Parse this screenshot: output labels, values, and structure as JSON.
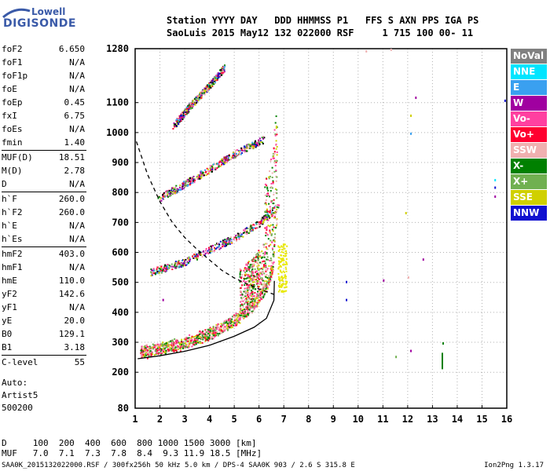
{
  "logo": {
    "line1": "Lowell",
    "line2": "DIGISONDE"
  },
  "header": {
    "row1": "Station YYYY DAY   DDD HHMMSS P1   FFS S AXN PPS IGA PS",
    "row2": "SaoLuis 2015 May12 132 022000 RSF     1 715 100 00- 11"
  },
  "params": {
    "group1": [
      {
        "label": "foF2",
        "value": "6.650"
      },
      {
        "label": "foF1",
        "value": "N/A"
      },
      {
        "label": "foF1p",
        "value": "N/A"
      },
      {
        "label": "foE",
        "value": "N/A"
      },
      {
        "label": "foEp",
        "value": "0.45"
      },
      {
        "label": "fxI",
        "value": "6.75"
      },
      {
        "label": "foEs",
        "value": "N/A"
      },
      {
        "label": "fmin",
        "value": "1.40"
      }
    ],
    "group2": [
      {
        "label": "MUF(D)",
        "value": "18.51"
      },
      {
        "label": "M(D)",
        "value": "2.78"
      },
      {
        "label": "D",
        "value": "N/A"
      }
    ],
    "group3": [
      {
        "label": "h`F",
        "value": "260.0"
      },
      {
        "label": "h`F2",
        "value": "260.0"
      },
      {
        "label": "h`E",
        "value": "N/A"
      },
      {
        "label": "h`Es",
        "value": "N/A"
      }
    ],
    "group4": [
      {
        "label": "hmF2",
        "value": "403.0"
      },
      {
        "label": "hmF1",
        "value": "N/A"
      },
      {
        "label": "hmE",
        "value": "110.0"
      },
      {
        "label": "yF2",
        "value": "142.6"
      },
      {
        "label": "yF1",
        "value": "N/A"
      },
      {
        "label": "yE",
        "value": "20.0"
      },
      {
        "label": "B0",
        "value": "129.1"
      },
      {
        "label": "B1",
        "value": "3.18"
      }
    ],
    "group5": [
      {
        "label": "C-level",
        "value": "55"
      }
    ]
  },
  "auto": {
    "l1": "Auto:",
    "l2": "Artist5",
    "l3": "500200"
  },
  "muf_table": {
    "row1": "D     100  200  400  600  800 1000 1500 3000 [km]",
    "row2": "MUF   7.0  7.1  7.3  7.8  8.4  9.3 11.9 18.5 [MHz]"
  },
  "footer": "SAA0K_2015132022000.RSF / 300fx256h 50 kHz 5.0 km / DPS-4 SAA0K 903 / 2.6 S 315.8 E",
  "version": "Ion2Png 1.3.17",
  "legend": [
    {
      "label": "NoVal",
      "color": "#808080"
    },
    {
      "label": "NNE",
      "color": "#00e5ff"
    },
    {
      "label": "E",
      "color": "#3aa0f0"
    },
    {
      "label": "W",
      "color": "#a000a0"
    },
    {
      "label": "Vo-",
      "color": "#ff40a0"
    },
    {
      "label": "Vo+",
      "color": "#ff0030"
    },
    {
      "label": "SSW",
      "color": "#f0b0b0"
    },
    {
      "label": "X-",
      "color": "#008000"
    },
    {
      "label": "X+",
      "color": "#70b050"
    },
    {
      "label": "SSE",
      "color": "#d0d000"
    },
    {
      "label": "NNW",
      "color": "#1010d0"
    }
  ],
  "chart_data": {
    "type": "scatter",
    "x_ticks": [
      "1",
      "2",
      "3",
      "4",
      "5",
      "6",
      "7",
      "8",
      "9",
      "10",
      "11",
      "12",
      "13",
      "14",
      "15",
      "16"
    ],
    "y_ticks": [
      "80",
      "200",
      "300",
      "400",
      "500",
      "600",
      "700",
      "800",
      "900",
      "1000",
      "1100",
      "1280"
    ],
    "xlim": [
      1,
      16
    ],
    "ylim": [
      80,
      1280
    ],
    "grid": true,
    "legend_position": "right",
    "traces": [
      {
        "name": "F2 trace O",
        "points": [
          [
            1.2,
            268
          ],
          [
            2,
            280
          ],
          [
            3,
            300
          ],
          [
            4,
            330
          ],
          [
            5,
            375
          ],
          [
            5.8,
            430
          ],
          [
            6.3,
            490
          ],
          [
            6.55,
            560
          ],
          [
            6.65,
            700
          ]
        ]
      },
      {
        "name": "F2 multi-hop 2",
        "points": [
          [
            1.6,
            535
          ],
          [
            3,
            570
          ],
          [
            4,
            610
          ],
          [
            5,
            650
          ],
          [
            6,
            700
          ],
          [
            6.8,
            760
          ]
        ]
      },
      {
        "name": "F2 multi-hop 3",
        "points": [
          [
            1.9,
            780
          ],
          [
            3,
            830
          ],
          [
            4,
            880
          ],
          [
            5,
            930
          ],
          [
            6.2,
            980
          ]
        ]
      },
      {
        "name": "F2 multi-hop 4",
        "points": [
          [
            2.5,
            1020
          ],
          [
            3.2,
            1090
          ],
          [
            4,
            1160
          ],
          [
            4.6,
            1220
          ]
        ]
      },
      {
        "name": "MUF curve (dashed)",
        "points": [
          [
            1.05,
            970
          ],
          [
            1.5,
            860
          ],
          [
            2,
            770
          ],
          [
            2.5,
            700
          ],
          [
            3,
            650
          ],
          [
            3.5,
            610
          ],
          [
            4,
            575
          ],
          [
            4.5,
            540
          ],
          [
            5,
            515
          ],
          [
            5.5,
            495
          ],
          [
            6,
            478
          ],
          [
            6.6,
            460
          ]
        ]
      },
      {
        "name": "profile curve",
        "points": [
          [
            1.1,
            245
          ],
          [
            2,
            255
          ],
          [
            3,
            270
          ],
          [
            4,
            290
          ],
          [
            5,
            320
          ],
          [
            5.8,
            350
          ],
          [
            6.3,
            380
          ],
          [
            6.6,
            440
          ],
          [
            6.62,
            505
          ]
        ]
      }
    ]
  }
}
